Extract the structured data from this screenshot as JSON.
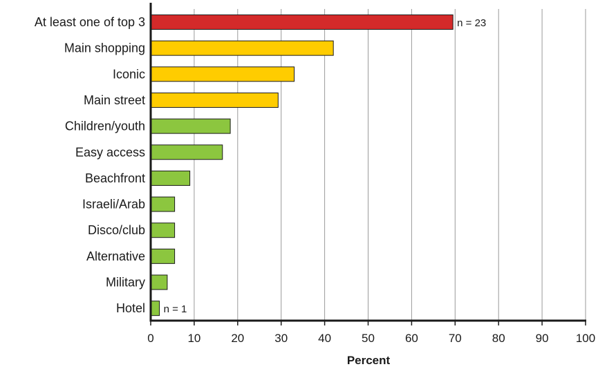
{
  "chart_data": {
    "type": "bar",
    "orientation": "horizontal",
    "categories": [
      "At least one of top 3",
      "Main shopping",
      "Iconic",
      "Main street",
      "Children/youth",
      "Easy access",
      "Beachfront",
      "Israeli/Arab",
      "Disco/club",
      "Alternative",
      "Military",
      "Hotel"
    ],
    "values": [
      69.5,
      42,
      33,
      29.3,
      18.3,
      16.5,
      9,
      5.5,
      5.5,
      5.5,
      3.8,
      2
    ],
    "colors": [
      "#d42a2a",
      "#ffcc00",
      "#ffcc00",
      "#ffcc00",
      "#8cc63f",
      "#8cc63f",
      "#8cc63f",
      "#8cc63f",
      "#8cc63f",
      "#8cc63f",
      "#8cc63f",
      "#8cc63f"
    ],
    "xlabel": "Percent",
    "xlim": [
      0,
      100
    ],
    "xticks": [
      0,
      10,
      20,
      30,
      40,
      50,
      60,
      70,
      80,
      90,
      100
    ],
    "grid": true,
    "annotations": [
      {
        "category": "At least one of top 3",
        "text": "n = 23"
      },
      {
        "category": "Hotel",
        "text": "n = 1"
      }
    ]
  }
}
